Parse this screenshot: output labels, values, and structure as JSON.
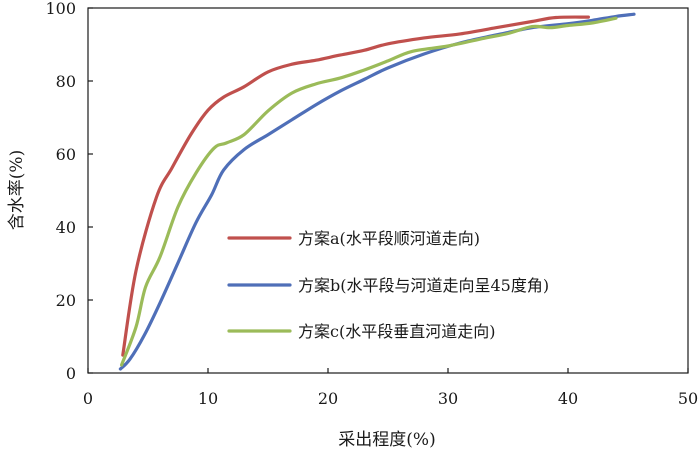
{
  "chart_data": {
    "type": "line",
    "xlabel": "采出程度(%)",
    "ylabel": "含水率(%)",
    "xlim": [
      0,
      50
    ],
    "ylim": [
      0,
      100
    ],
    "xticks": [
      "0",
      "10",
      "20",
      "30",
      "40",
      "50"
    ],
    "yticks": [
      "0",
      "20",
      "40",
      "60",
      "80",
      "100"
    ],
    "grid": false,
    "legend_position": "center-right",
    "series": [
      {
        "name": "方案a(水平段顺河道走向)",
        "color": "#c0504d",
        "points": [
          [
            2.9,
            4.9
          ],
          [
            4.0,
            28
          ],
          [
            5.7,
            48.1
          ],
          [
            7.0,
            56.2
          ],
          [
            8.6,
            65.5
          ],
          [
            10.0,
            72
          ],
          [
            11.3,
            75.6
          ],
          [
            13.0,
            78.4
          ],
          [
            15.0,
            82.5
          ],
          [
            17.0,
            84.6
          ],
          [
            19.0,
            85.7
          ],
          [
            21.0,
            87.1
          ],
          [
            23.0,
            88.4
          ],
          [
            25.0,
            90.2
          ],
          [
            28.0,
            91.8
          ],
          [
            31.0,
            92.9
          ],
          [
            34.0,
            94.6
          ],
          [
            37.0,
            96.3
          ],
          [
            39.0,
            97.4
          ],
          [
            41.7,
            97.5
          ]
        ]
      },
      {
        "name": "方案b(水平段与河道走向呈45度角)",
        "color": "#4f6fb8",
        "points": [
          [
            2.7,
            1.1
          ],
          [
            3.5,
            3.8
          ],
          [
            4.7,
            10.4
          ],
          [
            6.0,
            19.2
          ],
          [
            7.5,
            30.2
          ],
          [
            9.0,
            41.2
          ],
          [
            10.3,
            48.8
          ],
          [
            11.3,
            55.6
          ],
          [
            13.0,
            61.2
          ],
          [
            15.0,
            65.3
          ],
          [
            17.0,
            69.4
          ],
          [
            19.0,
            73.5
          ],
          [
            21.0,
            77.2
          ],
          [
            23.0,
            80.4
          ],
          [
            25.0,
            83.6
          ],
          [
            28.0,
            87.4
          ],
          [
            31.0,
            90.4
          ],
          [
            34.0,
            92.6
          ],
          [
            37.0,
            94.6
          ],
          [
            40.0,
            95.7
          ],
          [
            42.0,
            96.6
          ],
          [
            44.0,
            97.7
          ],
          [
            45.5,
            98.3
          ]
        ]
      },
      {
        "name": "方案c(水平段垂直河道走向)",
        "color": "#9bbb59",
        "points": [
          [
            2.8,
            2.2
          ],
          [
            4.0,
            12.6
          ],
          [
            4.8,
            23.6
          ],
          [
            6.0,
            31.8
          ],
          [
            7.5,
            45.5
          ],
          [
            9.0,
            54.8
          ],
          [
            10.5,
            61.6
          ],
          [
            11.5,
            63.0
          ],
          [
            13.0,
            65.3
          ],
          [
            15.0,
            71.8
          ],
          [
            17.0,
            76.7
          ],
          [
            19.0,
            79.2
          ],
          [
            21.0,
            80.8
          ],
          [
            23.0,
            83.0
          ],
          [
            25.0,
            85.5
          ],
          [
            27.0,
            88.1
          ],
          [
            30.0,
            89.6
          ],
          [
            33.0,
            91.7
          ],
          [
            35.0,
            93.0
          ],
          [
            37.0,
            94.9
          ],
          [
            38.5,
            94.6
          ],
          [
            40.0,
            95.2
          ],
          [
            42.0,
            95.9
          ],
          [
            44.0,
            97.2
          ]
        ]
      }
    ]
  }
}
